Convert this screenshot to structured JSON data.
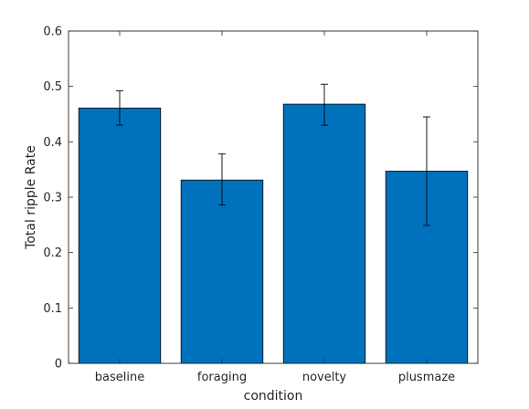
{
  "chart_data": {
    "type": "bar",
    "title": "",
    "xlabel": "condition",
    "ylabel": "Total ripple Rate",
    "categories": [
      "baseline",
      "foraging",
      "novelty",
      "plusmaze"
    ],
    "values": [
      0.461,
      0.331,
      0.468,
      0.347
    ],
    "error_low": [
      0.43,
      0.286,
      0.43,
      0.249
    ],
    "error_high": [
      0.492,
      0.378,
      0.504,
      0.445
    ],
    "ylim": [
      0,
      0.6
    ],
    "yticks": [
      0,
      0.1,
      0.2,
      0.3,
      0.4,
      0.5,
      0.6
    ],
    "ytick_labels": [
      "0",
      "0.1",
      "0.2",
      "0.3",
      "0.4",
      "0.5",
      "0.6"
    ],
    "grid": false,
    "bar_color": "#0072BD",
    "box": true
  }
}
